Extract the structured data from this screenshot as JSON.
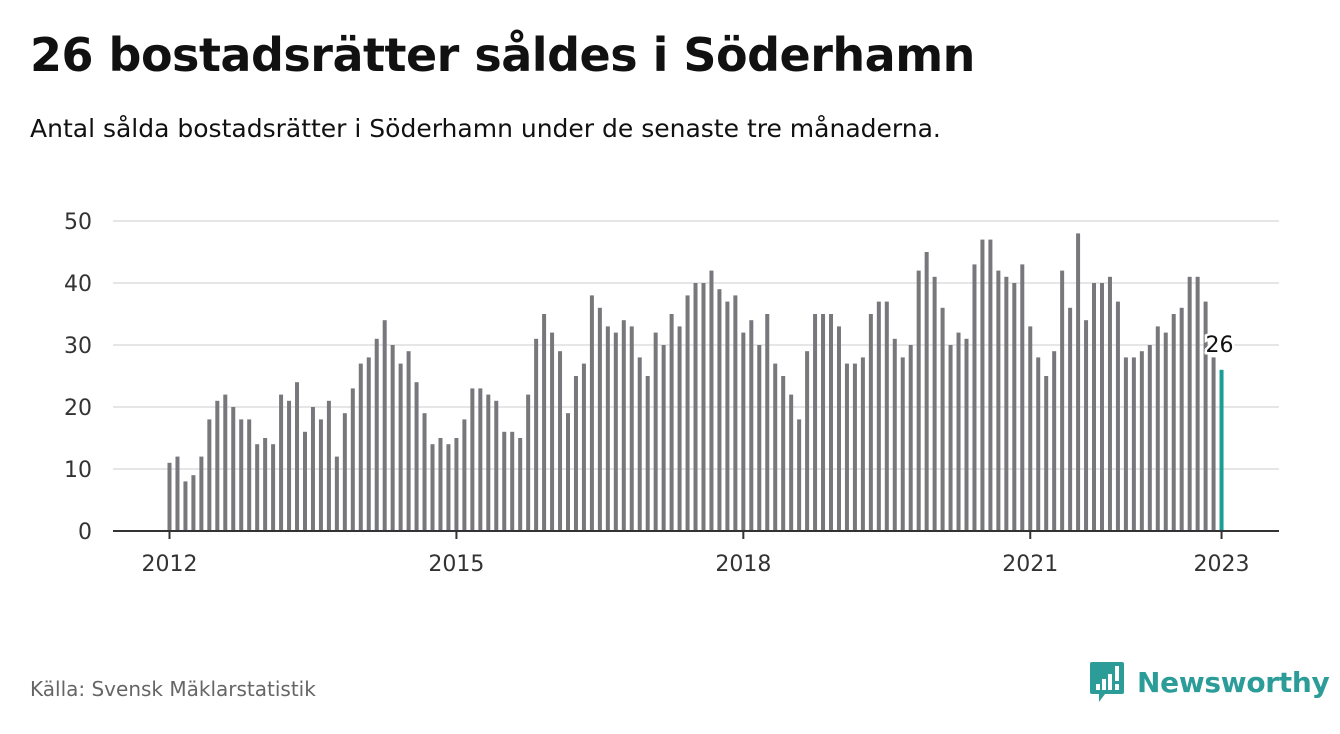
{
  "header": {
    "title": "26 bostadsrätter såldes i Söderhamn",
    "subtitle": "Antal sålda bostadsrätter i Söderhamn under de senaste tre månaderna."
  },
  "footer": {
    "source": "Källa: Svensk Mäklarstatistik",
    "brand": "Newsworthy"
  },
  "colors": {
    "bar": "#77777c",
    "highlight": "#1a9e96",
    "grid": "#dddddd",
    "axis": "#333333",
    "brand": "#2b9c98"
  },
  "icons": {
    "brand_logo": "newsworthy-logo-icon"
  },
  "chart_data": {
    "type": "bar",
    "title": "26 bostadsrätter såldes i Söderhamn",
    "subtitle": "Antal sålda bostadsrätter i Söderhamn under de senaste tre månaderna.",
    "xlabel": "",
    "ylabel": "",
    "ylim": [
      0,
      50
    ],
    "yticks": [
      0,
      10,
      20,
      30,
      40,
      50
    ],
    "grid": true,
    "xticks": [
      {
        "label": "2012",
        "index": 0
      },
      {
        "label": "2015",
        "index": 36
      },
      {
        "label": "2018",
        "index": 72
      },
      {
        "label": "2021",
        "index": 108
      },
      {
        "label": "2023",
        "index": 132
      }
    ],
    "values": [
      11,
      12,
      8,
      9,
      12,
      18,
      21,
      22,
      20,
      18,
      18,
      14,
      15,
      14,
      22,
      21,
      24,
      16,
      20,
      18,
      21,
      12,
      19,
      23,
      27,
      28,
      31,
      34,
      30,
      27,
      29,
      24,
      19,
      14,
      15,
      14,
      15,
      18,
      23,
      23,
      22,
      21,
      16,
      16,
      15,
      22,
      31,
      35,
      32,
      29,
      19,
      25,
      27,
      38,
      36,
      33,
      32,
      34,
      33,
      28,
      25,
      32,
      30,
      35,
      33,
      38,
      40,
      40,
      42,
      39,
      37,
      38,
      32,
      34,
      30,
      35,
      27,
      25,
      22,
      18,
      29,
      35,
      35,
      35,
      33,
      27,
      27,
      28,
      35,
      37,
      37,
      31,
      28,
      30,
      42,
      45,
      41,
      36,
      30,
      32,
      31,
      43,
      47,
      47,
      42,
      41,
      40,
      43,
      33,
      28,
      25,
      29,
      42,
      36,
      48,
      34,
      40,
      40,
      41,
      37,
      28,
      28,
      29,
      30,
      33,
      32,
      35,
      36,
      41,
      41,
      37,
      28,
      26
    ],
    "highlight": {
      "index": 132,
      "value": 26,
      "label": "26"
    }
  }
}
